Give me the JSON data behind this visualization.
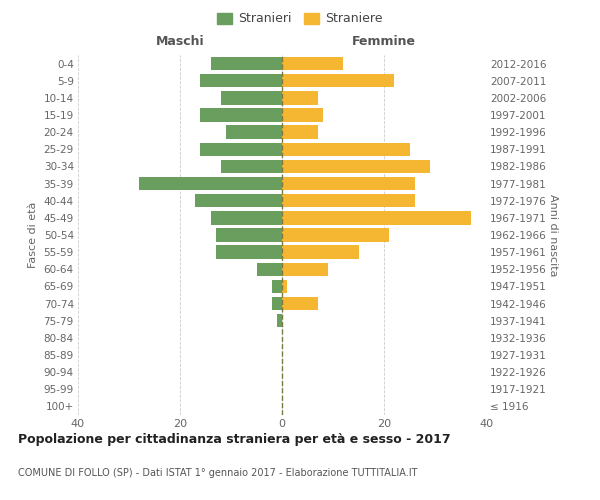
{
  "age_groups": [
    "100+",
    "95-99",
    "90-94",
    "85-89",
    "80-84",
    "75-79",
    "70-74",
    "65-69",
    "60-64",
    "55-59",
    "50-54",
    "45-49",
    "40-44",
    "35-39",
    "30-34",
    "25-29",
    "20-24",
    "15-19",
    "10-14",
    "5-9",
    "0-4"
  ],
  "birth_years": [
    "≤ 1916",
    "1917-1921",
    "1922-1926",
    "1927-1931",
    "1932-1936",
    "1937-1941",
    "1942-1946",
    "1947-1951",
    "1952-1956",
    "1957-1961",
    "1962-1966",
    "1967-1971",
    "1972-1976",
    "1977-1981",
    "1982-1986",
    "1987-1991",
    "1992-1996",
    "1997-2001",
    "2002-2006",
    "2007-2011",
    "2012-2016"
  ],
  "maschi": [
    0,
    0,
    0,
    0,
    0,
    1,
    2,
    2,
    5,
    13,
    13,
    14,
    17,
    28,
    12,
    16,
    11,
    16,
    12,
    16,
    14
  ],
  "femmine": [
    0,
    0,
    0,
    0,
    0,
    0,
    7,
    1,
    9,
    15,
    21,
    37,
    26,
    26,
    29,
    25,
    7,
    8,
    7,
    22,
    12
  ],
  "color_maschi": "#6a9e5f",
  "color_femmine": "#f5b731",
  "color_grid": "#cccccc",
  "color_center_line": "#7a7a40",
  "title_main": "Popolazione per cittadinanza straniera per età e sesso - 2017",
  "subtitle": "COMUNE DI FOLLO (SP) - Dati ISTAT 1° gennaio 2017 - Elaborazione TUTTITALIA.IT",
  "label_left_header": "Maschi",
  "label_right_header": "Femmine",
  "ylabel_left": "Fasce di età",
  "ylabel_right": "Anni di nascita",
  "legend_maschi": "Stranieri",
  "legend_femmine": "Straniere",
  "xlim": 40,
  "background_color": "#ffffff"
}
